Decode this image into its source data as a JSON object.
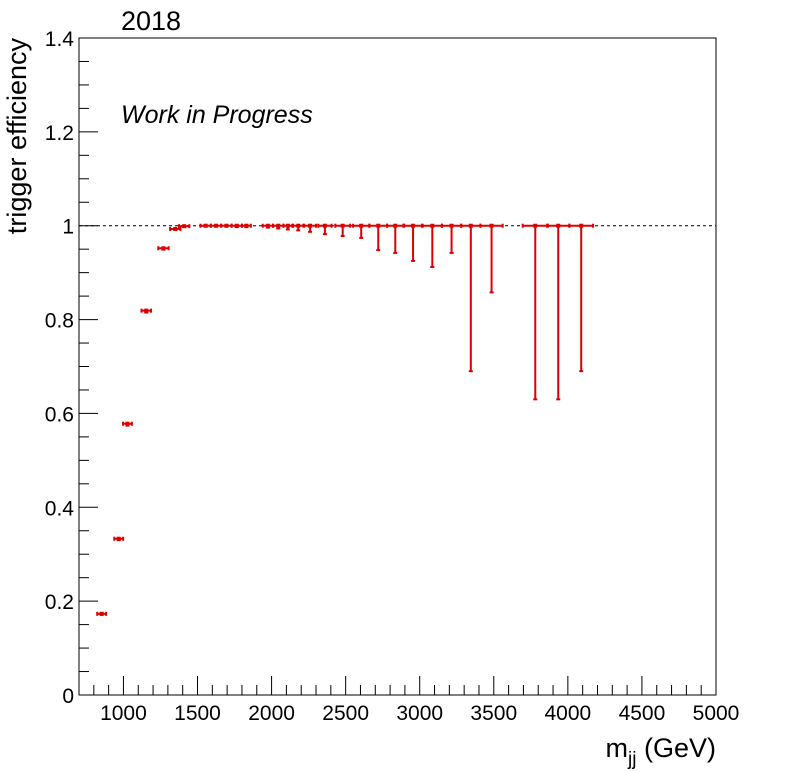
{
  "chart_data": {
    "type": "scatter",
    "title": "2018",
    "annotation": "Work in Progress",
    "xlabel_main": "m",
    "xlabel_sub": "jj",
    "xlabel_unit": " (GeV)",
    "ylabel": "trigger efficiency",
    "xlim": [
      700,
      5000
    ],
    "ylim": [
      0,
      1.4
    ],
    "x_ticks": [
      "1000",
      "1500",
      "2000",
      "2500",
      "3000",
      "3500",
      "4000",
      "4500",
      "5000"
    ],
    "y_ticks": [
      "0",
      "0.2",
      "0.4",
      "0.6",
      "0.8",
      "1",
      "1.2",
      "1.4"
    ],
    "reference_line": 1.0,
    "grid": false,
    "colors": {
      "points": "#dd0000",
      "axes": "#000000",
      "reference": "#000000"
    },
    "points": [
      {
        "x": 853,
        "xerr": 30,
        "y": 0.173,
        "elo": 0.002,
        "ehi": 0.002
      },
      {
        "x": 968,
        "xerr": 30,
        "y": 0.333,
        "elo": 0.003,
        "ehi": 0.003
      },
      {
        "x": 1027,
        "xerr": 30,
        "y": 0.578,
        "elo": 0.004,
        "ehi": 0.004
      },
      {
        "x": 1154,
        "xerr": 32,
        "y": 0.819,
        "elo": 0.004,
        "ehi": 0.004
      },
      {
        "x": 1270,
        "xerr": 35,
        "y": 0.952,
        "elo": 0.003,
        "ehi": 0.003
      },
      {
        "x": 1350,
        "xerr": 35,
        "y": 0.993,
        "elo": 0.002,
        "ehi": 0.002
      },
      {
        "x": 1410,
        "xerr": 35,
        "y": 0.999,
        "elo": 0.001,
        "ehi": 0.001
      },
      {
        "x": 1555,
        "xerr": 35,
        "y": 1.0,
        "elo": 0.002,
        "ehi": 0.0
      },
      {
        "x": 1625,
        "xerr": 35,
        "y": 1.0,
        "elo": 0.002,
        "ehi": 0.0
      },
      {
        "x": 1695,
        "xerr": 35,
        "y": 1.0,
        "elo": 0.002,
        "ehi": 0.0
      },
      {
        "x": 1765,
        "xerr": 35,
        "y": 1.0,
        "elo": 0.003,
        "ehi": 0.0
      },
      {
        "x": 1830,
        "xerr": 30,
        "y": 1.0,
        "elo": 0.003,
        "ehi": 0.0
      },
      {
        "x": 1975,
        "xerr": 35,
        "y": 1.0,
        "elo": 0.004,
        "ehi": 0.0
      },
      {
        "x": 2045,
        "xerr": 35,
        "y": 1.0,
        "elo": 0.006,
        "ehi": 0.0
      },
      {
        "x": 2110,
        "xerr": 30,
        "y": 1.0,
        "elo": 0.008,
        "ehi": 0.0
      },
      {
        "x": 2180,
        "xerr": 35,
        "y": 1.0,
        "elo": 0.01,
        "ehi": 0.0
      },
      {
        "x": 2260,
        "xerr": 40,
        "y": 1.0,
        "elo": 0.013,
        "ehi": 0.0
      },
      {
        "x": 2360,
        "xerr": 45,
        "y": 1.0,
        "elo": 0.018,
        "ehi": 0.0
      },
      {
        "x": 2480,
        "xerr": 50,
        "y": 1.0,
        "elo": 0.022,
        "ehi": 0.0
      },
      {
        "x": 2605,
        "xerr": 55,
        "y": 1.0,
        "elo": 0.026,
        "ehi": 0.0
      },
      {
        "x": 2720,
        "xerr": 60,
        "y": 1.0,
        "elo": 0.052,
        "ehi": 0.0
      },
      {
        "x": 2835,
        "xerr": 55,
        "y": 1.0,
        "elo": 0.058,
        "ehi": 0.0
      },
      {
        "x": 2955,
        "xerr": 60,
        "y": 1.0,
        "elo": 0.075,
        "ehi": 0.0
      },
      {
        "x": 3085,
        "xerr": 65,
        "y": 1.0,
        "elo": 0.088,
        "ehi": 0.0
      },
      {
        "x": 3215,
        "xerr": 65,
        "y": 1.0,
        "elo": 0.058,
        "ehi": 0.0
      },
      {
        "x": 3345,
        "xerr": 65,
        "y": 1.0,
        "elo": 0.31,
        "ehi": 0.0
      },
      {
        "x": 3485,
        "xerr": 75,
        "y": 1.0,
        "elo": 0.142,
        "ehi": 0.0
      },
      {
        "x": 3780,
        "xerr": 85,
        "y": 1.0,
        "elo": 0.37,
        "ehi": 0.0
      },
      {
        "x": 3935,
        "xerr": 75,
        "y": 1.0,
        "elo": 0.37,
        "ehi": 0.0
      },
      {
        "x": 4090,
        "xerr": 80,
        "y": 1.0,
        "elo": 0.31,
        "ehi": 0.0
      }
    ]
  }
}
